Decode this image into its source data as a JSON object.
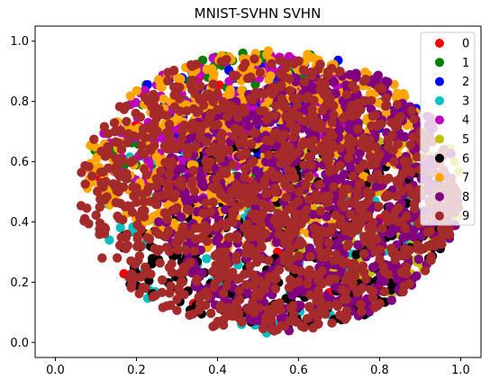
{
  "chart_data": {
    "type": "scatter",
    "title": "MNIST-SVHN SVHN",
    "xlabel": "",
    "ylabel": "",
    "xlim": [
      -0.05,
      1.05
    ],
    "ylim": [
      -0.05,
      1.05
    ],
    "x_ticks": [
      "0.0",
      "0.2",
      "0.4",
      "0.6",
      "0.8",
      "1.0"
    ],
    "y_ticks": [
      "0.0",
      "0.2",
      "0.4",
      "0.6",
      "0.8",
      "1.0"
    ],
    "grid": false,
    "legend_position": "top-right",
    "series": [
      {
        "name": "0",
        "color": "#ff0000",
        "count": 60
      },
      {
        "name": "1",
        "color": "#008000",
        "count": 120
      },
      {
        "name": "2",
        "color": "#0000ff",
        "count": 160
      },
      {
        "name": "3",
        "color": "#00bfbf",
        "count": 140
      },
      {
        "name": "4",
        "color": "#bf00bf",
        "count": 260
      },
      {
        "name": "5",
        "color": "#bfbf00",
        "count": 150
      },
      {
        "name": "6",
        "color": "#000000",
        "count": 320
      },
      {
        "name": "7",
        "color": "#ffa500",
        "count": 520
      },
      {
        "name": "8",
        "color": "#800080",
        "count": 900
      },
      {
        "name": "9",
        "color": "#a52a2a",
        "count": 1100
      }
    ]
  }
}
